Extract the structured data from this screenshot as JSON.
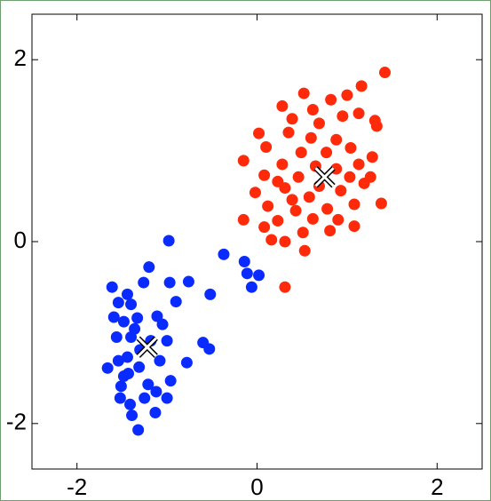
{
  "chart_data": {
    "type": "scatter",
    "xlim": [
      -2.5,
      2.5
    ],
    "ylim": [
      -2.5,
      2.5
    ],
    "xticks": [
      -2,
      0,
      2
    ],
    "yticks": [
      -2,
      0,
      2
    ],
    "series": [
      {
        "color": "#0a2bff",
        "x": [
          -0.98,
          -1.2,
          -1.61,
          -1.26,
          -0.97,
          -0.76,
          -0.52,
          -1.44,
          -1.54,
          -1.4,
          -0.9,
          -0.37,
          -0.14,
          -0.11,
          0.02,
          -0.06,
          -1.59,
          -1.48,
          -1.33,
          -1.11,
          -1.05,
          -1.56,
          -1.4,
          -1.0,
          -0.6,
          -0.53,
          -1.44,
          -1.54,
          -1.31,
          -1.08,
          -0.78,
          -1.66,
          -1.48,
          -1.21,
          -0.96,
          -1.0,
          -1.52,
          -1.41,
          -1.13,
          -1.39,
          -1.32,
          -1.51,
          -1.3,
          -1.43,
          -1.25,
          -1.12,
          -1.36,
          -1.18
        ],
        "values": [
          0.01,
          -0.28,
          -0.5,
          -0.45,
          -0.45,
          -0.44,
          -0.58,
          -0.58,
          -0.67,
          -0.69,
          -0.66,
          -0.14,
          -0.22,
          -0.35,
          -0.37,
          -0.5,
          -0.83,
          -0.88,
          -0.84,
          -0.82,
          -0.91,
          -1.05,
          -1.05,
          -1.09,
          -1.11,
          -1.18,
          -1.27,
          -1.31,
          -1.38,
          -1.31,
          -1.33,
          -1.39,
          -1.48,
          -1.57,
          -1.53,
          -1.72,
          -1.72,
          -1.79,
          -1.88,
          -1.91,
          -2.07,
          -1.59,
          -1.19,
          -1.45,
          -1.72,
          -1.65,
          -0.96,
          -1.09
        ]
      },
      {
        "color": "#ff2a0a",
        "x": [
          1.42,
          1.16,
          0.52,
          0.82,
          1.0,
          0.28,
          0.62,
          0.95,
          1.13,
          1.31,
          0.02,
          0.35,
          0.6,
          0.88,
          1.33,
          0.1,
          0.49,
          1.04,
          -0.15,
          0.28,
          0.65,
          1.13,
          1.28,
          0.08,
          0.46,
          1.03,
          1.19,
          -0.02,
          0.31,
          0.58,
          0.93,
          0.12,
          0.43,
          0.78,
          1.08,
          1.38,
          -0.15,
          0.23,
          0.62,
          0.9,
          1.08,
          0.08,
          0.51,
          0.31,
          0.53,
          0.16,
          0.31,
          0.77,
          0.69,
          0.39,
          0.23,
          0.88,
          1.26,
          0.69,
          0.39,
          0.81
        ],
        "values": [
          1.86,
          1.71,
          1.63,
          1.56,
          1.61,
          1.49,
          1.45,
          1.38,
          1.41,
          1.33,
          1.19,
          1.2,
          1.14,
          1.12,
          1.27,
          1.04,
          0.98,
          1.03,
          0.89,
          0.85,
          0.83,
          0.85,
          0.93,
          0.73,
          0.71,
          0.71,
          0.64,
          0.54,
          0.59,
          0.49,
          0.56,
          0.39,
          0.34,
          0.36,
          0.41,
          0.42,
          0.24,
          0.23,
          0.25,
          0.24,
          0.17,
          0.16,
          0.1,
          0.0,
          -0.1,
          0.02,
          -0.5,
          0.98,
          1.3,
          1.35,
          0.66,
          0.8,
          0.71,
          0.61,
          0.46,
          0.12
        ]
      }
    ],
    "centroids": {
      "x": [
        0.75,
        -1.22
      ],
      "values": [
        0.71,
        -1.16
      ]
    }
  }
}
